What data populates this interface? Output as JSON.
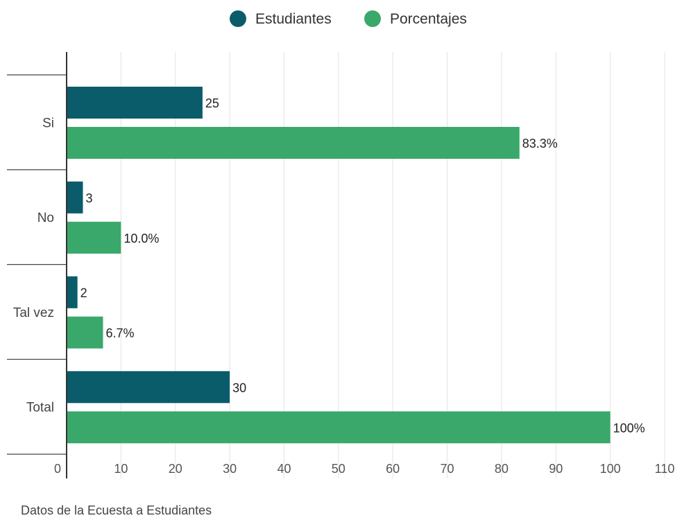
{
  "chart_data": {
    "type": "bar",
    "orientation": "horizontal",
    "categories": [
      "Si",
      "No",
      "Tal vez",
      "Total"
    ],
    "series": [
      {
        "name": "Estudiantes",
        "values": [
          25,
          3,
          2,
          30
        ],
        "labels": [
          "25",
          "3",
          "2",
          "30"
        ],
        "color": "#0b5c6b"
      },
      {
        "name": "Porcentajes",
        "values": [
          83.3,
          10.0,
          6.7,
          100
        ],
        "labels": [
          "83.3%",
          "10.0%",
          "6.7%",
          "100%"
        ],
        "color": "#3aa86b"
      }
    ],
    "xlim": [
      0,
      110
    ],
    "xticks": [
      0,
      10,
      20,
      30,
      40,
      50,
      60,
      70,
      80,
      90,
      100,
      110
    ],
    "grid": true,
    "legend": "top-center",
    "caption": "Datos de la Ecuesta a Estudiantes"
  }
}
